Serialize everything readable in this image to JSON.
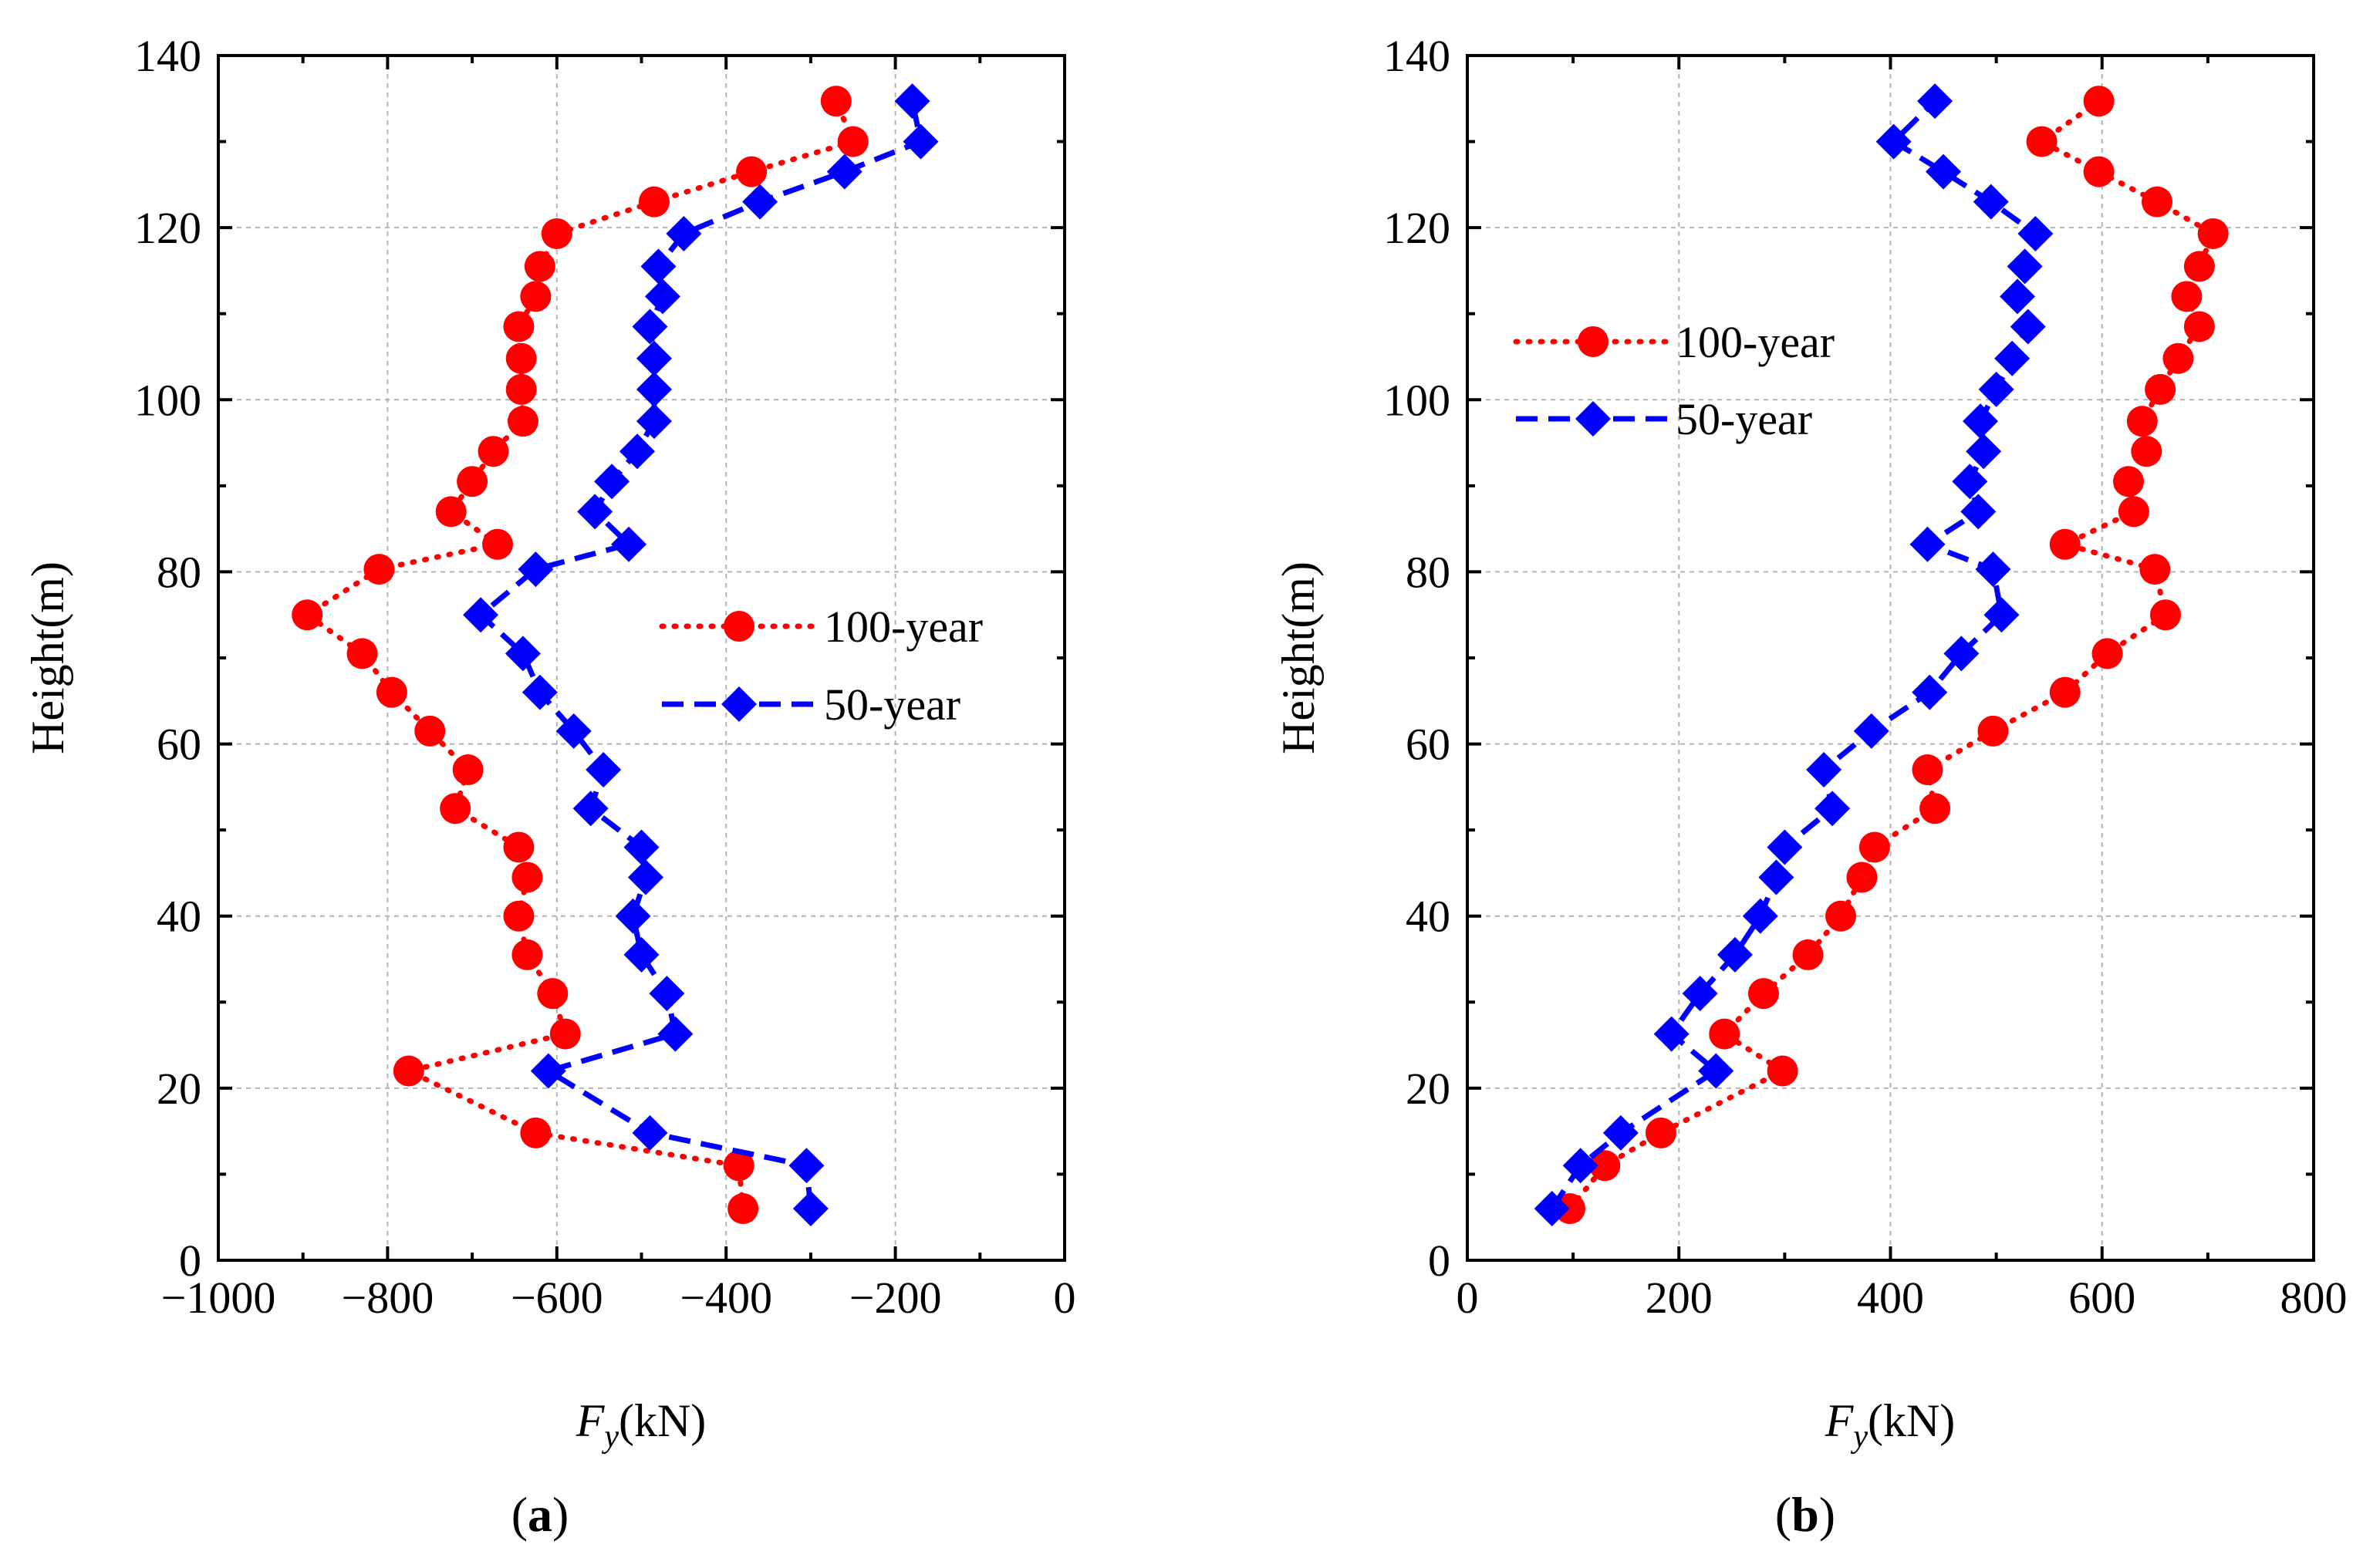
{
  "chart_data": [
    {
      "id": "a",
      "type": "line",
      "panel_label": "a",
      "xlabel_main": "F",
      "xlabel_sub": "y",
      "xlabel_unit": "(kN)",
      "ylabel": "Height(m)",
      "xlim": [
        -1000,
        0
      ],
      "ylim": [
        0,
        140
      ],
      "xticks": [
        -1000,
        -800,
        -600,
        -400,
        -200,
        0
      ],
      "xtick_labels": [
        "−1000",
        "−800",
        "−600",
        "−400",
        "−200",
        "0"
      ],
      "yticks": [
        0,
        20,
        40,
        60,
        80,
        100,
        120,
        140
      ],
      "ytick_labels": [
        "0",
        "20",
        "40",
        "60",
        "80",
        "100",
        "120",
        "140"
      ],
      "grid": true,
      "legend_position": "center-right",
      "series": [
        {
          "name": "100-year",
          "color": "#ff0000",
          "marker": "circle",
          "line": "dotted",
          "points": [
            [
              -380,
              6
            ],
            [
              -385,
              11
            ],
            [
              -625,
              14.8
            ],
            [
              -775,
              22
            ],
            [
              -590,
              26.3
            ],
            [
              -605,
              31
            ],
            [
              -635,
              35.5
            ],
            [
              -645,
              40
            ],
            [
              -635,
              44.5
            ],
            [
              -645,
              48
            ],
            [
              -720,
              52.5
            ],
            [
              -705,
              57
            ],
            [
              -750,
              61.5
            ],
            [
              -795,
              66
            ],
            [
              -830,
              70.5
            ],
            [
              -895,
              75
            ],
            [
              -810,
              80.3
            ],
            [
              -670,
              83.2
            ],
            [
              -725,
              87
            ],
            [
              -700,
              90.5
            ],
            [
              -675,
              94
            ],
            [
              -640,
              97.5
            ],
            [
              -642,
              101.2
            ],
            [
              -642,
              104.8
            ],
            [
              -645,
              108.5
            ],
            [
              -625,
              112
            ],
            [
              -620,
              115.5
            ],
            [
              -600,
              119.3
            ],
            [
              -485,
              123
            ],
            [
              -370,
              126.5
            ],
            [
              -250,
              130
            ],
            [
              -270,
              134.7
            ]
          ]
        },
        {
          "name": "50-year",
          "color": "#0000ff",
          "marker": "diamond",
          "line": "dashed",
          "points": [
            [
              -300,
              6
            ],
            [
              -305,
              11
            ],
            [
              -490,
              14.8
            ],
            [
              -610,
              22
            ],
            [
              -460,
              26.3
            ],
            [
              -470,
              31
            ],
            [
              -500,
              35.5
            ],
            [
              -510,
              40
            ],
            [
              -495,
              44.5
            ],
            [
              -500,
              48
            ],
            [
              -560,
              52.5
            ],
            [
              -545,
              57
            ],
            [
              -580,
              61.5
            ],
            [
              -620,
              66
            ],
            [
              -640,
              70.5
            ],
            [
              -690,
              75
            ],
            [
              -625,
              80.3
            ],
            [
              -515,
              83.2
            ],
            [
              -555,
              87
            ],
            [
              -535,
              90.5
            ],
            [
              -505,
              94
            ],
            [
              -485,
              97.5
            ],
            [
              -485,
              101.2
            ],
            [
              -485,
              104.8
            ],
            [
              -490,
              108.5
            ],
            [
              -475,
              112
            ],
            [
              -480,
              115.5
            ],
            [
              -450,
              119.3
            ],
            [
              -360,
              123
            ],
            [
              -260,
              126.5
            ],
            [
              -170,
              130
            ],
            [
              -180,
              134.7
            ]
          ]
        }
      ]
    },
    {
      "id": "b",
      "type": "line",
      "panel_label": "b",
      "xlabel_main": "F",
      "xlabel_sub": "y",
      "xlabel_unit": "(kN)",
      "ylabel": "Height(m)",
      "xlim": [
        0,
        800
      ],
      "ylim": [
        0,
        140
      ],
      "xticks": [
        0,
        200,
        400,
        600,
        800
      ],
      "xtick_labels": [
        "0",
        "200",
        "400",
        "600",
        "800"
      ],
      "yticks": [
        0,
        20,
        40,
        60,
        80,
        100,
        120,
        140
      ],
      "ytick_labels": [
        "0",
        "20",
        "40",
        "60",
        "80",
        "100",
        "120",
        "140"
      ],
      "grid": true,
      "legend_position": "top-left",
      "series": [
        {
          "name": "100-year",
          "color": "#ff0000",
          "marker": "circle",
          "line": "dotted",
          "points": [
            [
              97,
              6
            ],
            [
              130,
              11
            ],
            [
              183,
              14.8
            ],
            [
              298,
              22
            ],
            [
              243,
              26.3
            ],
            [
              280,
              31
            ],
            [
              322,
              35.5
            ],
            [
              353,
              40
            ],
            [
              373,
              44.5
            ],
            [
              385,
              48
            ],
            [
              442,
              52.5
            ],
            [
              435,
              57
            ],
            [
              497,
              61.5
            ],
            [
              565,
              66
            ],
            [
              605,
              70.5
            ],
            [
              660,
              75
            ],
            [
              650,
              80.3
            ],
            [
              565,
              83.2
            ],
            [
              630,
              87
            ],
            [
              625,
              90.5
            ],
            [
              642,
              94
            ],
            [
              638,
              97.5
            ],
            [
              655,
              101.2
            ],
            [
              672,
              104.8
            ],
            [
              692,
              108.5
            ],
            [
              680,
              112
            ],
            [
              692,
              115.5
            ],
            [
              705,
              119.3
            ],
            [
              652,
              123
            ],
            [
              597,
              126.5
            ],
            [
              543,
              130
            ],
            [
              597,
              134.7
            ]
          ]
        },
        {
          "name": "50-year",
          "color": "#0000ff",
          "marker": "diamond",
          "line": "dashed",
          "points": [
            [
              80,
              6
            ],
            [
              107,
              11
            ],
            [
              145,
              14.8
            ],
            [
              235,
              22
            ],
            [
              193,
              26.3
            ],
            [
              220,
              31
            ],
            [
              253,
              35.5
            ],
            [
              277,
              40
            ],
            [
              292,
              44.5
            ],
            [
              300,
              48
            ],
            [
              345,
              52.5
            ],
            [
              337,
              57
            ],
            [
              382,
              61.5
            ],
            [
              437,
              66
            ],
            [
              467,
              70.5
            ],
            [
              505,
              75
            ],
            [
              497,
              80.3
            ],
            [
              435,
              83.2
            ],
            [
              483,
              87
            ],
            [
              475,
              90.5
            ],
            [
              488,
              94
            ],
            [
              485,
              97.5
            ],
            [
              500,
              101.2
            ],
            [
              515,
              104.8
            ],
            [
              530,
              108.5
            ],
            [
              520,
              112
            ],
            [
              527,
              115.5
            ],
            [
              537,
              119.3
            ],
            [
              495,
              123
            ],
            [
              450,
              126.5
            ],
            [
              403,
              130
            ],
            [
              442,
              134.7
            ]
          ]
        }
      ]
    }
  ]
}
